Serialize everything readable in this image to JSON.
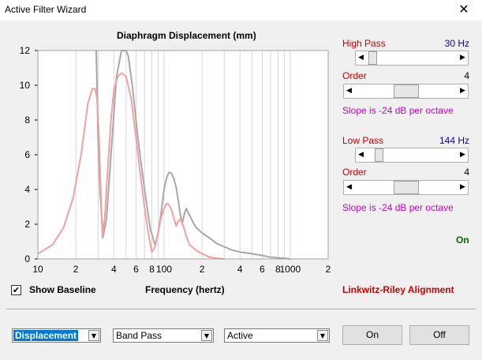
{
  "window": {
    "title": "Active Filter Wizard",
    "close_glyph": "✕"
  },
  "chart_data": {
    "type": "line",
    "title": "Diaphragm Displacement (mm)",
    "xlabel": "Frequency (hertz)",
    "ylabel": "",
    "xscale": "log",
    "xlim": [
      10,
      2000
    ],
    "ylim": [
      0,
      12
    ],
    "yticks": [
      0,
      2,
      4,
      6,
      8,
      10,
      12
    ],
    "xtick_labels": [
      {
        "f": 10,
        "label": "10"
      },
      {
        "f": 20,
        "label": "2"
      },
      {
        "f": 40,
        "label": "4"
      },
      {
        "f": 60,
        "label": "6"
      },
      {
        "f": 80,
        "label": "8"
      },
      {
        "f": 100,
        "label": "100"
      },
      {
        "f": 200,
        "label": "2"
      },
      {
        "f": 400,
        "label": "4"
      },
      {
        "f": 600,
        "label": "6"
      },
      {
        "f": 800,
        "label": "8"
      },
      {
        "f": 1000,
        "label": "1000"
      },
      {
        "f": 2000,
        "label": "2"
      }
    ],
    "grid": true,
    "series": [
      {
        "color": "#a8a8a8",
        "x": [
          29,
          30,
          31,
          32,
          33,
          35,
          38,
          42,
          46,
          48,
          50,
          52,
          56,
          62,
          70,
          78,
          85,
          90,
          95,
          100,
          105,
          110,
          115,
          120,
          125,
          130,
          135,
          140,
          145,
          150,
          160,
          170,
          180,
          200,
          230,
          260,
          300,
          350,
          400,
          500,
          600,
          700,
          800,
          900,
          1000
        ],
        "y": [
          12,
          7,
          4,
          2.5,
          1.3,
          2.3,
          6,
          10.5,
          12,
          12,
          12,
          11.7,
          10,
          7,
          4,
          1.7,
          0.8,
          1.5,
          2.7,
          4,
          4.7,
          5,
          4.9,
          4.6,
          4.1,
          3.3,
          2.5,
          2.1,
          2.6,
          2.9,
          2.5,
          2.1,
          1.8,
          1.5,
          1.2,
          0.9,
          0.7,
          0.5,
          0.4,
          0.3,
          0.2,
          0.1,
          0.07,
          0.04,
          0
        ]
      },
      {
        "color": "#f4a0a0",
        "x": [
          10,
          13,
          16,
          19,
          22,
          25,
          27,
          28.5,
          29.5,
          30.5,
          31.5,
          32.5,
          34,
          36,
          38,
          40,
          43,
          46,
          50,
          55,
          60,
          65,
          70,
          75,
          80,
          85,
          90,
          95,
          100,
          105,
          110,
          115,
          120,
          125,
          130,
          135,
          140,
          145,
          150,
          160,
          180,
          200,
          230,
          260,
          300
        ],
        "y": [
          0.3,
          0.8,
          1.8,
          3.5,
          6,
          9,
          9.8,
          9.8,
          9.2,
          7,
          4,
          1.2,
          2.5,
          5.5,
          8,
          9.7,
          10.5,
          10.7,
          10.5,
          9.2,
          7,
          4.8,
          3,
          1.5,
          0.4,
          0.7,
          1.6,
          2.4,
          2.9,
          3.2,
          3.1,
          2.8,
          2.3,
          1.9,
          2.2,
          2.3,
          2,
          1.7,
          1.3,
          0.8,
          0.5,
          0.3,
          0.1,
          0.04,
          0
        ]
      }
    ]
  },
  "controls": {
    "high_pass": {
      "label": "High Pass",
      "value": "30 Hz",
      "position": 0.03
    },
    "high_pass_order": {
      "label": "Order",
      "value": "4",
      "position": 0.5
    },
    "high_pass_slope": "Slope is -24 dB per octave",
    "low_pass": {
      "label": "Low Pass",
      "value": "144 Hz",
      "position": 0.1
    },
    "low_pass_order": {
      "label": "Order",
      "value": "4",
      "position": 0.5
    },
    "low_pass_slope": "Slope is -24 dB per octave",
    "status": "On",
    "alignment": "Linkwitz-Riley Alignment",
    "show_baseline": {
      "label": "Show Baseline",
      "checked": true,
      "check_glyph": "✔"
    }
  },
  "footer": {
    "select_plot": "Displacement",
    "select_type": "Band Pass",
    "select_mode": "Active",
    "dropdown_glyph": "▼",
    "on_button": "On",
    "off_button": "Off"
  },
  "icons": {
    "left_arrow": "◀",
    "right_arrow": "▶"
  }
}
